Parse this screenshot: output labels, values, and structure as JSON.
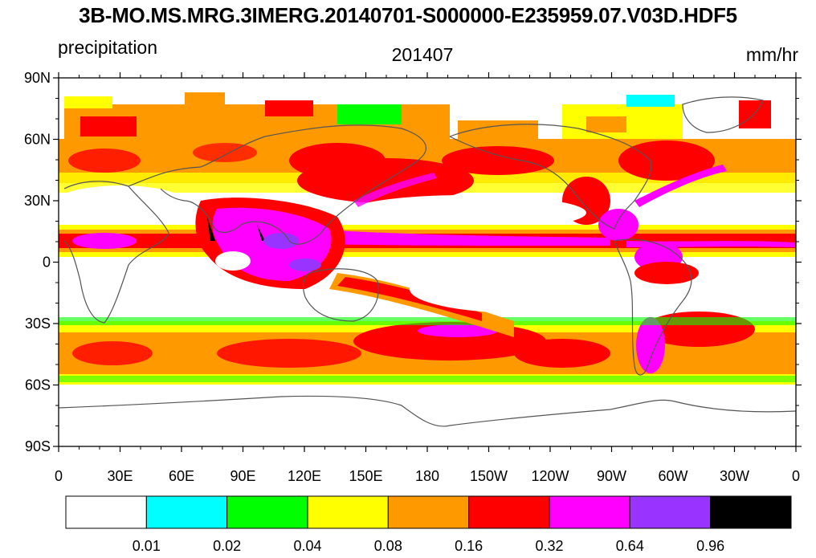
{
  "title": "3B-MO.MS.MRG.3IMERG.20140701-S000000-E235959.07.V03D.HDF5",
  "left_label": "precipitation",
  "center_label": "201407",
  "right_label": "mm/hr",
  "map": {
    "lon_range": [
      0,
      360
    ],
    "lat_range": [
      -90,
      90
    ],
    "data_lat_range": [
      -60,
      60
    ],
    "lat_ticks": [
      {
        "value": 90,
        "label": "90N"
      },
      {
        "value": 60,
        "label": "60N"
      },
      {
        "value": 30,
        "label": "30N"
      },
      {
        "value": 0,
        "label": "0"
      },
      {
        "value": -30,
        "label": "30S"
      },
      {
        "value": -60,
        "label": "60S"
      },
      {
        "value": -90,
        "label": "90S"
      }
    ],
    "lon_ticks": [
      {
        "value": 0,
        "label": "0"
      },
      {
        "value": 30,
        "label": "30E"
      },
      {
        "value": 60,
        "label": "60E"
      },
      {
        "value": 90,
        "label": "90E"
      },
      {
        "value": 120,
        "label": "120E"
      },
      {
        "value": 150,
        "label": "150E"
      },
      {
        "value": 180,
        "label": "180"
      },
      {
        "value": 210,
        "label": "150W"
      },
      {
        "value": 240,
        "label": "120W"
      },
      {
        "value": 270,
        "label": "90W"
      },
      {
        "value": 300,
        "label": "60W"
      },
      {
        "value": 330,
        "label": "30W"
      },
      {
        "value": 360,
        "label": "0"
      }
    ]
  },
  "colorbar": {
    "colors": [
      "#ffffff",
      "#00ffff",
      "#00ff00",
      "#ffff00",
      "#ff9900",
      "#ff0000",
      "#ff00ff",
      "#9933ff",
      "#000000"
    ],
    "labels": [
      "0.01",
      "0.02",
      "0.04",
      "0.08",
      "0.16",
      "0.32",
      "0.64",
      "0.96"
    ]
  }
}
